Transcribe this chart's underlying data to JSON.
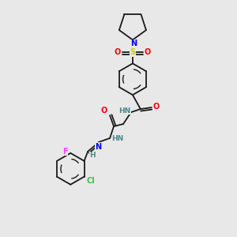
{
  "background_color": "#e8e8e8",
  "bond_color": "#1a1a1a",
  "atom_colors": {
    "N": "#0000ff",
    "O": "#ff0000",
    "S": "#cccc00",
    "F": "#ff44ff",
    "Cl": "#44bb44",
    "H": "#4a8a8a",
    "C": "#1a1a1a"
  },
  "figsize": [
    3.0,
    3.0
  ],
  "dpi": 100
}
